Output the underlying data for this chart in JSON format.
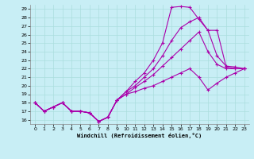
{
  "xlabel": "Windchill (Refroidissement éolien,°C)",
  "xlim": [
    -0.5,
    23.5
  ],
  "ylim": [
    15.5,
    29.5
  ],
  "xticks": [
    0,
    1,
    2,
    3,
    4,
    5,
    6,
    7,
    8,
    9,
    10,
    11,
    12,
    13,
    14,
    15,
    16,
    17,
    18,
    19,
    20,
    21,
    22,
    23
  ],
  "yticks": [
    16,
    17,
    18,
    19,
    20,
    21,
    22,
    23,
    24,
    25,
    26,
    27,
    28,
    29
  ],
  "bg_color": "#c8eef5",
  "line_color": "#aa00aa",
  "grid_color": "#aadddd",
  "lines": [
    [
      18.0,
      17.0,
      17.5,
      18.0,
      17.0,
      17.0,
      16.8,
      15.8,
      16.3,
      18.3,
      19.3,
      20.5,
      21.5,
      23.0,
      25.0,
      29.2,
      29.3,
      29.2,
      27.8,
      26.5,
      23.5,
      22.3,
      22.2,
      22.0
    ],
    [
      18.0,
      17.0,
      17.5,
      18.0,
      17.0,
      17.0,
      16.8,
      15.8,
      16.3,
      18.3,
      19.3,
      20.0,
      21.0,
      22.0,
      23.5,
      25.3,
      26.8,
      27.5,
      28.0,
      26.5,
      26.5,
      22.2,
      22.0,
      22.0
    ],
    [
      18.0,
      17.0,
      17.5,
      18.0,
      17.0,
      17.0,
      16.8,
      15.8,
      16.3,
      18.3,
      19.0,
      19.8,
      20.5,
      21.3,
      22.3,
      23.3,
      24.3,
      25.3,
      26.3,
      24.0,
      22.5,
      22.0,
      22.0,
      22.0
    ],
    [
      18.0,
      17.0,
      17.5,
      18.0,
      17.0,
      17.0,
      16.8,
      15.8,
      16.3,
      18.3,
      19.0,
      19.3,
      19.7,
      20.0,
      20.5,
      21.0,
      21.5,
      22.0,
      21.0,
      19.5,
      20.3,
      21.0,
      21.5,
      22.0
    ]
  ]
}
